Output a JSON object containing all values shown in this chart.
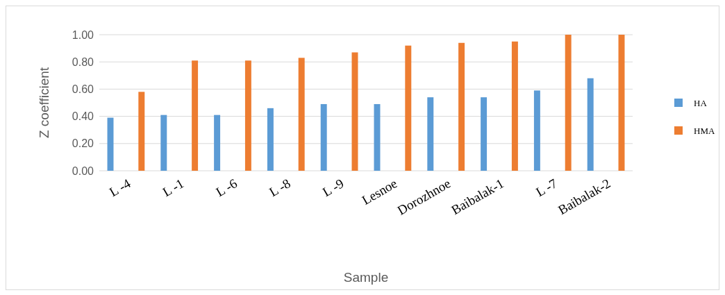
{
  "chart_data": {
    "type": "bar",
    "xlabel": "Sample",
    "ylabel": "Z coefficient",
    "categories": [
      "L -4",
      "L -1",
      "L -6",
      "L -8",
      "L -9",
      "Lesnoe",
      "Dorozhnoe",
      "Baibalak-1",
      "L -7",
      "Baibalak-2"
    ],
    "series": [
      {
        "name": "HA",
        "color": "#5b9bd5",
        "values": [
          0.39,
          0.41,
          0.41,
          0.46,
          0.49,
          0.49,
          0.54,
          0.54,
          0.59,
          0.68
        ]
      },
      {
        "name": "HMA",
        "color": "#ed7d31",
        "values": [
          0.58,
          0.81,
          0.81,
          0.83,
          0.87,
          0.92,
          0.94,
          0.95,
          1.0,
          1.0
        ]
      }
    ],
    "ylim": [
      0,
      1
    ],
    "yticks": [
      {
        "value": 0,
        "label": "0.00"
      },
      {
        "value": 0.2,
        "label": "0.20"
      },
      {
        "value": 0.4,
        "label": "0.40"
      },
      {
        "value": 0.6,
        "label": "0.60"
      },
      {
        "value": 0.8,
        "label": "0.80"
      },
      {
        "value": 1,
        "label": "1.00"
      }
    ],
    "grid": "y",
    "legend": "right"
  }
}
